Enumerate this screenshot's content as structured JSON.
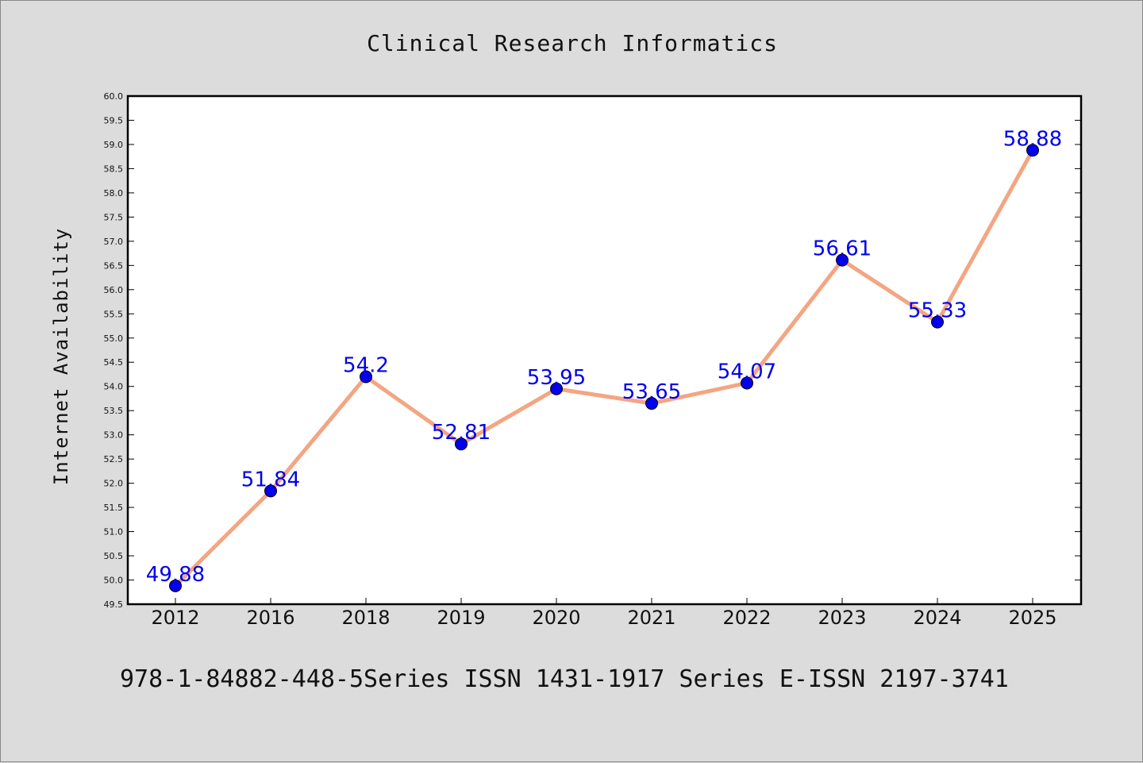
{
  "chart_data": {
    "type": "line",
    "title": "Clinical Research Informatics",
    "xlabel": "",
    "ylabel": "Internet Availability",
    "categories": [
      "2012",
      "2016",
      "2018",
      "2019",
      "2020",
      "2021",
      "2022",
      "2023",
      "2024",
      "2025"
    ],
    "series": [
      {
        "values": [
          49.88,
          51.84,
          54.2,
          52.81,
          53.95,
          53.65,
          54.07,
          56.61,
          55.33,
          58.88
        ],
        "data_labels": [
          "49.88",
          "51.84",
          "54.2",
          "52.81",
          "53.95",
          "53.65",
          "54.07",
          "56.61",
          "55.33",
          "58.88"
        ],
        "line_color": "#f4a582",
        "marker_color": "#0000ee",
        "label_color": "#0000ee"
      }
    ],
    "ylim": [
      49.5,
      60.0
    ],
    "yticks": [
      "49.5",
      "50.0",
      "50.5",
      "51.0",
      "51.5",
      "52.0",
      "52.5",
      "53.0",
      "53.5",
      "54.0",
      "54.5",
      "55.0",
      "55.5",
      "56.0",
      "56.5",
      "57.0",
      "57.5",
      "58.0",
      "58.5",
      "59.0",
      "59.5",
      "60.0"
    ],
    "grid": false,
    "legend": "none",
    "background_color": "#dcdcdc",
    "plot_background_color": "#ffffff"
  },
  "footer": "978-1-84882-448-5Series ISSN 1431-1917 Series E-ISSN 2197-3741"
}
